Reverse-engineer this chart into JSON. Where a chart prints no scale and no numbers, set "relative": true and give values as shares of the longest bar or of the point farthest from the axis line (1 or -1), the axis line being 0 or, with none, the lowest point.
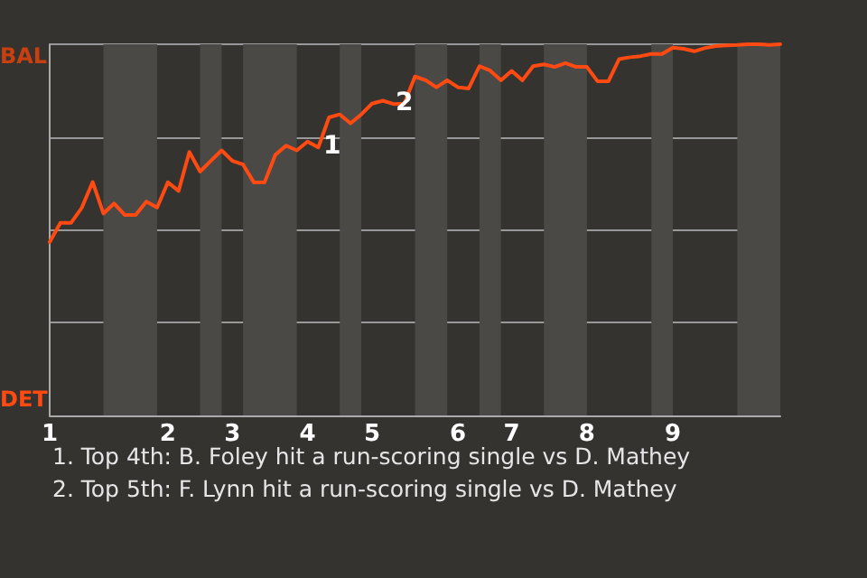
{
  "chart_data": {
    "type": "line",
    "categories": [
      "1",
      null,
      null,
      null,
      null,
      null,
      null,
      null,
      null,
      null,
      null,
      "2",
      null,
      null,
      null,
      null,
      null,
      "3",
      null,
      null,
      null,
      null,
      null,
      null,
      "4",
      null,
      null,
      null,
      null,
      null,
      "5",
      null,
      null,
      null,
      null,
      null,
      null,
      null,
      "6",
      null,
      null,
      null,
      null,
      "7",
      null,
      null,
      null,
      null,
      null,
      null,
      "8",
      null,
      null,
      null,
      null,
      null,
      null,
      null,
      "9",
      null,
      null,
      null,
      null,
      null,
      null,
      null,
      null,
      null,
      null
    ],
    "series": [
      {
        "color": "#ff4a12",
        "values": [
          0.467,
          0.519,
          0.519,
          0.56,
          0.629,
          0.544,
          0.571,
          0.54,
          0.54,
          0.576,
          0.56,
          0.628,
          0.605,
          0.71,
          0.657,
          0.686,
          0.714,
          0.686,
          0.676,
          0.628,
          0.628,
          0.702,
          0.727,
          0.714,
          0.738,
          0.722,
          0.803,
          0.811,
          0.787,
          0.811,
          0.84,
          0.848,
          0.839,
          0.84,
          0.913,
          0.903,
          0.884,
          0.903,
          0.884,
          0.881,
          0.941,
          0.929,
          0.903,
          0.928,
          0.903,
          0.941,
          0.946,
          0.939,
          0.949,
          0.939,
          0.939,
          0.9,
          0.9,
          0.96,
          0.965,
          0.968,
          0.974,
          0.974,
          0.991,
          0.988,
          0.981,
          0.99,
          0.995,
          0.997,
          0.998,
          1,
          1,
          0.998,
          1
        ]
      }
    ],
    "relative": true,
    "grid": "y",
    "marker": "none",
    "line_style": "solid",
    "annotations": [
      "BAL",
      "DET",
      "1",
      "2",
      "1. Top 4th: B. Foley hit a run-scoring single vs D. Mathey",
      "2. Top 5th: F. Lynn hit a run-scoring single vs D. Mathey"
    ]
  }
}
